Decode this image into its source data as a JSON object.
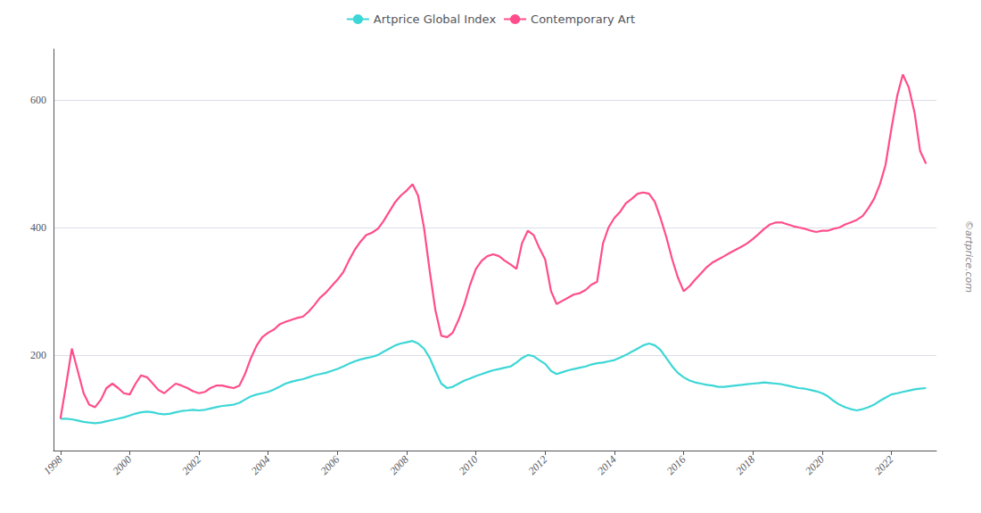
{
  "chart_data": {
    "type": "line",
    "annotation": "©artprice.com",
    "xlim": [
      1997.8,
      2023.3
    ],
    "xticks": [
      1998,
      2000,
      2002,
      2004,
      2006,
      2008,
      2010,
      2012,
      2014,
      2016,
      2018,
      2020,
      2022
    ],
    "ylim": [
      50,
      680
    ],
    "yticks": [
      200,
      400,
      600
    ],
    "grid": true,
    "legend": "top",
    "x": [
      1998.0,
      1998.17,
      1998.33,
      1998.5,
      1998.67,
      1998.83,
      1999.0,
      1999.17,
      1999.33,
      1999.5,
      1999.67,
      1999.83,
      2000.0,
      2000.17,
      2000.33,
      2000.5,
      2000.67,
      2000.83,
      2001.0,
      2001.17,
      2001.33,
      2001.5,
      2001.67,
      2001.83,
      2002.0,
      2002.17,
      2002.33,
      2002.5,
      2002.67,
      2002.83,
      2003.0,
      2003.17,
      2003.33,
      2003.5,
      2003.67,
      2003.83,
      2004.0,
      2004.17,
      2004.33,
      2004.5,
      2004.67,
      2004.83,
      2005.0,
      2005.17,
      2005.33,
      2005.5,
      2005.67,
      2005.83,
      2006.0,
      2006.17,
      2006.33,
      2006.5,
      2006.67,
      2006.83,
      2007.0,
      2007.17,
      2007.33,
      2007.5,
      2007.67,
      2007.83,
      2008.0,
      2008.17,
      2008.33,
      2008.5,
      2008.67,
      2008.83,
      2009.0,
      2009.17,
      2009.33,
      2009.5,
      2009.67,
      2009.83,
      2010.0,
      2010.17,
      2010.33,
      2010.5,
      2010.67,
      2010.83,
      2011.0,
      2011.17,
      2011.33,
      2011.5,
      2011.67,
      2011.83,
      2012.0,
      2012.17,
      2012.33,
      2012.5,
      2012.67,
      2012.83,
      2013.0,
      2013.17,
      2013.33,
      2013.5,
      2013.67,
      2013.83,
      2014.0,
      2014.17,
      2014.33,
      2014.5,
      2014.67,
      2014.83,
      2015.0,
      2015.17,
      2015.33,
      2015.5,
      2015.67,
      2015.83,
      2016.0,
      2016.17,
      2016.33,
      2016.5,
      2016.67,
      2016.83,
      2017.0,
      2017.17,
      2017.33,
      2017.5,
      2017.67,
      2017.83,
      2018.0,
      2018.17,
      2018.33,
      2018.5,
      2018.67,
      2018.83,
      2019.0,
      2019.17,
      2019.33,
      2019.5,
      2019.67,
      2019.83,
      2020.0,
      2020.17,
      2020.33,
      2020.5,
      2020.67,
      2020.83,
      2021.0,
      2021.17,
      2021.33,
      2021.5,
      2021.67,
      2021.83,
      2022.0,
      2022.17,
      2022.33,
      2022.5,
      2022.67,
      2022.83,
      2023.0
    ],
    "series": [
      {
        "name": "Artprice Global Index",
        "color": "#3dd6d6",
        "values": [
          100,
          100,
          99,
          97,
          95,
          94,
          93,
          94,
          96,
          98,
          100,
          102,
          105,
          108,
          110,
          111,
          110,
          108,
          107,
          108,
          110,
          112,
          113,
          114,
          113,
          114,
          116,
          118,
          120,
          121,
          122,
          125,
          130,
          135,
          138,
          140,
          142,
          146,
          150,
          155,
          158,
          160,
          162,
          165,
          168,
          170,
          172,
          175,
          178,
          182,
          186,
          190,
          193,
          195,
          197,
          200,
          205,
          210,
          215,
          218,
          220,
          222,
          218,
          210,
          195,
          175,
          155,
          148,
          150,
          155,
          160,
          163,
          167,
          170,
          173,
          176,
          178,
          180,
          182,
          188,
          195,
          200,
          198,
          192,
          186,
          175,
          170,
          173,
          176,
          178,
          180,
          182,
          185,
          187,
          188,
          190,
          192,
          196,
          200,
          205,
          210,
          215,
          218,
          215,
          208,
          195,
          182,
          172,
          165,
          160,
          157,
          155,
          153,
          152,
          150,
          150,
          151,
          152,
          153,
          154,
          155,
          156,
          157,
          156,
          155,
          154,
          152,
          150,
          148,
          147,
          145,
          143,
          140,
          135,
          128,
          122,
          118,
          115,
          113,
          115,
          118,
          122,
          128,
          133,
          138,
          140,
          142,
          144,
          146,
          147,
          148
        ]
      },
      {
        "name": "Contemporary Art",
        "color": "#ff4d8b",
        "values": [
          100,
          155,
          210,
          175,
          140,
          122,
          118,
          130,
          148,
          155,
          148,
          140,
          138,
          155,
          168,
          165,
          155,
          145,
          140,
          148,
          155,
          152,
          148,
          143,
          140,
          142,
          148,
          152,
          152,
          150,
          148,
          152,
          170,
          195,
          215,
          228,
          235,
          240,
          248,
          252,
          255,
          258,
          260,
          268,
          278,
          290,
          298,
          308,
          318,
          330,
          348,
          365,
          378,
          388,
          392,
          398,
          410,
          425,
          440,
          450,
          458,
          468,
          450,
          400,
          330,
          270,
          230,
          228,
          235,
          255,
          280,
          310,
          335,
          348,
          355,
          358,
          355,
          348,
          342,
          335,
          375,
          395,
          388,
          368,
          350,
          300,
          280,
          285,
          290,
          295,
          297,
          302,
          310,
          315,
          375,
          400,
          415,
          425,
          438,
          445,
          453,
          455,
          453,
          440,
          415,
          385,
          350,
          322,
          300,
          308,
          318,
          328,
          338,
          345,
          350,
          355,
          360,
          365,
          370,
          375,
          382,
          390,
          398,
          405,
          408,
          408,
          405,
          402,
          400,
          398,
          395,
          393,
          395,
          395,
          398,
          400,
          405,
          408,
          412,
          418,
          430,
          445,
          468,
          498,
          555,
          607,
          640,
          620,
          580,
          520,
          500
        ]
      }
    ]
  }
}
